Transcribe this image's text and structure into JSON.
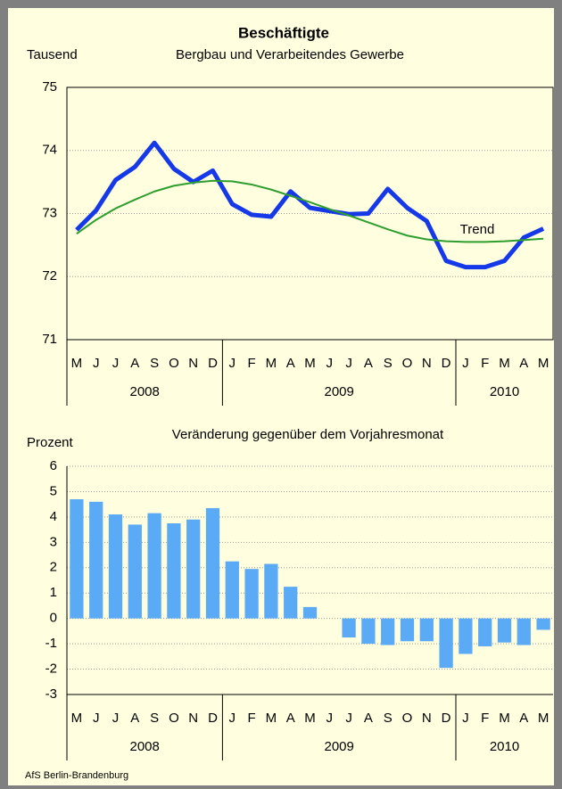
{
  "chart_data": [
    {
      "type": "line",
      "title": "Beschäftigte",
      "subtitle": "Bergbau und Verarbeitendes Gewerbe",
      "y_label": "Tausend",
      "categories": [
        "M",
        "J",
        "J",
        "A",
        "S",
        "O",
        "N",
        "D",
        "J",
        "F",
        "M",
        "A",
        "M",
        "J",
        "J",
        "A",
        "S",
        "O",
        "N",
        "D",
        "J",
        "F",
        "M",
        "A",
        "M"
      ],
      "years": [
        "2008",
        "2008",
        "2008",
        "2008",
        "2008",
        "2008",
        "2008",
        "2008",
        "2009",
        "2009",
        "2009",
        "2009",
        "2009",
        "2009",
        "2009",
        "2009",
        "2009",
        "2009",
        "2009",
        "2009",
        "2010",
        "2010",
        "2010",
        "2010",
        "2010"
      ],
      "series": [
        {
          "color": "#1538e8",
          "values": [
            72.74,
            73.05,
            73.53,
            73.74,
            74.12,
            73.71,
            73.5,
            73.68,
            73.15,
            72.98,
            72.95,
            73.35,
            73.09,
            73.04,
            72.99,
            73.0,
            73.39,
            73.09,
            72.88,
            72.25,
            72.15,
            72.15,
            72.25,
            72.62,
            72.76
          ]
        },
        {
          "name": "Trend",
          "color": "#2e9e2e",
          "values": [
            72.68,
            72.9,
            73.08,
            73.22,
            73.35,
            73.44,
            73.49,
            73.52,
            73.51,
            73.46,
            73.38,
            73.28,
            73.18,
            73.07,
            72.97,
            72.86,
            72.75,
            72.65,
            72.59,
            72.56,
            72.55,
            72.55,
            72.56,
            72.58,
            72.6
          ]
        }
      ],
      "ylim": [
        71,
        75
      ],
      "yticks": [
        71,
        72,
        73,
        74,
        75
      ],
      "grid": true
    },
    {
      "type": "bar",
      "title": "Veränderung gegenüber dem Vorjahresmonat",
      "y_label": "Prozent",
      "categories": [
        "M",
        "J",
        "J",
        "A",
        "S",
        "O",
        "N",
        "D",
        "J",
        "F",
        "M",
        "A",
        "M",
        "J",
        "J",
        "A",
        "S",
        "O",
        "N",
        "D",
        "J",
        "F",
        "M",
        "A",
        "M"
      ],
      "years": [
        "2008",
        "2008",
        "2008",
        "2008",
        "2008",
        "2008",
        "2008",
        "2008",
        "2009",
        "2009",
        "2009",
        "2009",
        "2009",
        "2009",
        "2009",
        "2009",
        "2009",
        "2009",
        "2009",
        "2009",
        "2010",
        "2010",
        "2010",
        "2010",
        "2010"
      ],
      "color": "#5aaaf5",
      "values": [
        4.7,
        4.6,
        4.1,
        3.7,
        4.15,
        3.75,
        3.9,
        4.35,
        2.25,
        1.95,
        2.15,
        1.25,
        0.45,
        0,
        -0.75,
        -1.0,
        -1.05,
        -0.9,
        -0.9,
        -1.95,
        -1.4,
        -1.1,
        -0.95,
        -1.05,
        -0.45
      ],
      "ylim": [
        -3,
        6
      ],
      "yticks": [
        -3,
        -2,
        -1,
        0,
        1,
        2,
        3,
        4,
        5,
        6
      ],
      "grid": true
    }
  ],
  "source": "AfS Berlin-Brandenburg"
}
